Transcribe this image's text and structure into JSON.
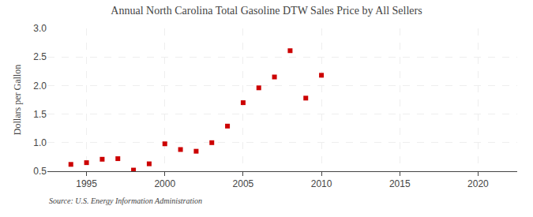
{
  "chart_data": {
    "type": "scatter",
    "title": "Annual North Carolina Total Gasoline DTW Sales Price by All Sellers",
    "ylabel": "Dollars per Gallon",
    "annotations": [
      "Source: U.S. Energy Information Administration"
    ],
    "x": [
      1994,
      1995,
      1996,
      1997,
      1998,
      1999,
      2000,
      2001,
      2002,
      2003,
      2004,
      2005,
      2006,
      2007,
      2008,
      2009,
      2010
    ],
    "values": [
      0.62,
      0.65,
      0.71,
      0.72,
      0.52,
      0.63,
      0.98,
      0.88,
      0.85,
      1.0,
      1.29,
      1.7,
      1.96,
      2.15,
      2.61,
      1.78,
      2.18
    ],
    "color": "#cc0000",
    "marker": "square",
    "xlim": [
      1992.5,
      2022.5
    ],
    "ylim": [
      0.5,
      3.0
    ],
    "xticks": [
      1995,
      2000,
      2005,
      2010,
      2015,
      2020
    ],
    "yticks": [
      0.5,
      {
        "value": 1,
        "label": "1.0"
      },
      1.5,
      {
        "value": 2,
        "label": "2.0"
      },
      2.5,
      {
        "value": 3,
        "label": "3.0"
      }
    ],
    "grid": true
  }
}
